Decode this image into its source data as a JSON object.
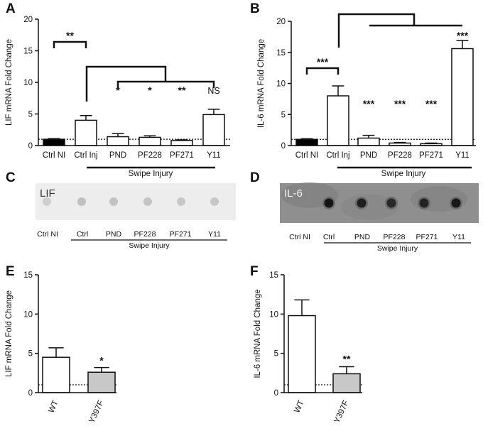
{
  "panel_labels": [
    "A",
    "B",
    "C",
    "D",
    "E",
    "F"
  ],
  "chart_data": [
    {
      "panel": "A",
      "type": "bar",
      "ylabel": "LIF mRNA Fold Change",
      "xlabel": "",
      "ylim": [
        0,
        20
      ],
      "yticks": [
        "0",
        "5",
        "10",
        "15",
        "20"
      ],
      "categories": [
        "Ctrl NI",
        "Ctrl Inj",
        "PND",
        "PF228",
        "PF271",
        "Y11"
      ],
      "values": [
        1.0,
        4.0,
        1.4,
        1.3,
        0.8,
        4.9
      ],
      "errors": [
        0.1,
        0.75,
        0.5,
        0.25,
        0.1,
        0.85
      ],
      "fills": [
        "#000000",
        "#ffffff",
        "#ffffff",
        "#ffffff",
        "#ffffff",
        "#ffffff"
      ],
      "significance": [
        "",
        "",
        "*",
        "*",
        "**",
        "NS"
      ],
      "bracket_label": "**",
      "baseline": 1,
      "group_label": "Swipe Injury"
    },
    {
      "panel": "B",
      "type": "bar",
      "ylabel": "IL-6 mRNA Fold Change",
      "xlabel": "",
      "ylim": [
        0,
        20
      ],
      "yticks": [
        "0",
        "5",
        "10",
        "15",
        "20"
      ],
      "categories": [
        "Ctrl NI",
        "Ctrl Inj",
        "PND",
        "PF228",
        "PF271",
        "Y11"
      ],
      "values": [
        1.0,
        8.0,
        1.2,
        0.4,
        0.3,
        15.6
      ],
      "errors": [
        0.1,
        1.6,
        0.45,
        0.1,
        0.1,
        1.3
      ],
      "fills": [
        "#000000",
        "#ffffff",
        "#ffffff",
        "#ffffff",
        "#ffffff",
        "#ffffff"
      ],
      "significance": [
        "",
        "",
        "***",
        "***",
        "***",
        "***"
      ],
      "bracket_label": "***",
      "baseline": 1,
      "group_label": "Swipe Injury"
    },
    {
      "panel": "E",
      "type": "bar",
      "ylabel": "LIF mRNA Fold Change",
      "xlabel": "",
      "ylim": [
        0,
        15
      ],
      "yticks": [
        "0",
        "5",
        "10",
        "15"
      ],
      "categories": [
        "WT",
        "Y397F"
      ],
      "values": [
        4.5,
        2.6
      ],
      "errors": [
        1.2,
        0.6
      ],
      "fills": [
        "#ffffff",
        "#c8c8c8"
      ],
      "significance": [
        "",
        "*"
      ],
      "baseline": 1
    },
    {
      "panel": "F",
      "type": "bar",
      "ylabel": "IL-6 mRNA Fold Change",
      "xlabel": "",
      "ylim": [
        0,
        15
      ],
      "yticks": [
        "0",
        "5",
        "10",
        "15"
      ],
      "categories": [
        "WT",
        "Y397F"
      ],
      "values": [
        9.8,
        2.4
      ],
      "errors": [
        2.0,
        0.9
      ],
      "fills": [
        "#ffffff",
        "#c8c8c8"
      ],
      "significance": [
        "",
        "**"
      ],
      "baseline": 1
    }
  ],
  "blots": [
    {
      "panel": "C",
      "label": "LIF",
      "categories": [
        "Ctrl NI",
        "Ctrl",
        "PND",
        "PF228",
        "PF271",
        "Y11"
      ],
      "group_label": "Swipe Injury",
      "spot_intensity": [
        0.12,
        0.3,
        0.25,
        0.22,
        0.2,
        0.2
      ]
    },
    {
      "panel": "D",
      "label": "IL-6",
      "categories": [
        "Ctrl NI",
        "Ctrl",
        "PND",
        "PF228",
        "PF271",
        "Y11"
      ],
      "group_label": "Swipe Injury",
      "spot_intensity": [
        0.0,
        0.95,
        0.85,
        0.75,
        0.8,
        0.92
      ]
    }
  ],
  "colors": {
    "ink": "#111111",
    "blot_c_bg": "#ededed",
    "blot_d_bg": "#8f8f8f"
  }
}
